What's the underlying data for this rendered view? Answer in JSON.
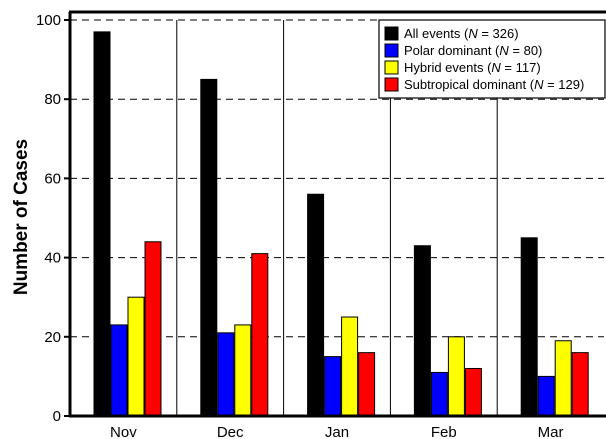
{
  "chart_data": {
    "type": "bar",
    "title": "",
    "xlabel": "",
    "ylabel": "Number of Cases",
    "categories": [
      "Nov",
      "Dec",
      "Jan",
      "Feb",
      "Mar"
    ],
    "ylim": [
      0,
      100
    ],
    "yticks": [
      0,
      20,
      40,
      60,
      80,
      100
    ],
    "grid": "horizontal-dashed",
    "legend_position": "top-right",
    "series": [
      {
        "name": "All events",
        "N": "326",
        "color": "#000000",
        "values": [
          97,
          85,
          56,
          43,
          45
        ]
      },
      {
        "name": "Polar dominant",
        "N": "80",
        "color": "#0000ff",
        "values": [
          23,
          21,
          15,
          11,
          10
        ]
      },
      {
        "name": "Hybrid events",
        "N": "117",
        "color": "#ffff00",
        "values": [
          30,
          23,
          25,
          20,
          19
        ]
      },
      {
        "name": "Subtropical dominant",
        "N": "129",
        "color": "#ff0000",
        "values": [
          44,
          41,
          16,
          12,
          16
        ]
      }
    ]
  }
}
